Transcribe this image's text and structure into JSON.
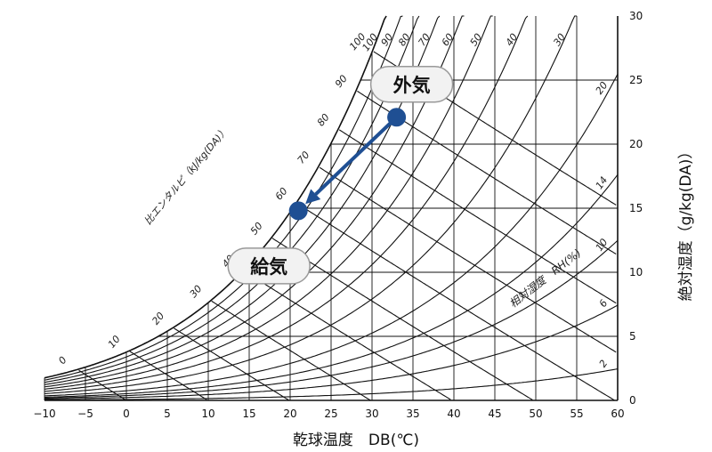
{
  "chart_data": {
    "type": "psychrometric",
    "xlabel": "乾球温度　DB(℃)",
    "ylabel": "絶対湿度（g/kg(DA)）",
    "xlim": [
      -10,
      60
    ],
    "ylim": [
      0,
      30
    ],
    "x_ticks": [
      "−10",
      "−5",
      "0",
      "5",
      "10",
      "15",
      "20",
      "25",
      "30",
      "35",
      "40",
      "45",
      "50",
      "55",
      "60"
    ],
    "y_ticks": [
      "0",
      "5",
      "10",
      "15",
      "20",
      "25",
      "30"
    ],
    "enthalpy_axis_label": "比エンタルピ（kJ/kg(DA)）",
    "enthalpy_values": [
      0,
      10,
      20,
      30,
      40,
      50,
      60,
      70,
      80,
      90,
      100
    ],
    "enthalpy_tick_labels": [
      "0",
      "10",
      "20",
      "30",
      "40",
      "50",
      "60",
      "70",
      "80",
      "90",
      "100"
    ],
    "rh_axis_label": "相対湿度　RH(%)",
    "rh_values": [
      2,
      6,
      10,
      14,
      20,
      30,
      40,
      50,
      60,
      70,
      80,
      90,
      100
    ],
    "rh_tick_labels": [
      "2",
      "6",
      "10",
      "14",
      "20",
      "30",
      "40",
      "50",
      "60",
      "70",
      "80",
      "90",
      "100"
    ],
    "grid": true,
    "points": [
      {
        "name": "外気",
        "x": 33,
        "y": 22.1
      },
      {
        "name": "給気",
        "x": 21,
        "y": 14.8
      }
    ],
    "arrow": {
      "from": "外気",
      "to": "給気"
    },
    "colors": {
      "curves": "#111111",
      "point": "#1f4f93",
      "arrow": "#1f4f93",
      "label_bg": "#f2f2f2",
      "label_border": "#999999"
    }
  }
}
